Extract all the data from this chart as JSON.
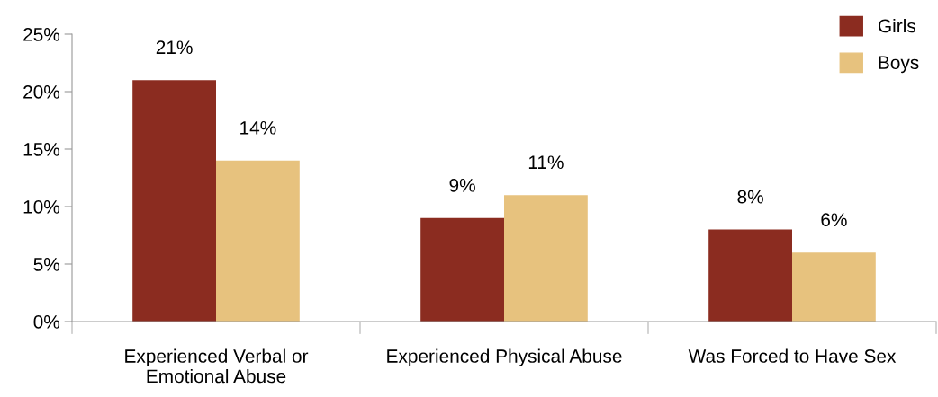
{
  "chart_data": {
    "type": "bar",
    "categories": [
      "Experienced Verbal or\nEmotional Abuse",
      "Experienced Physical Abuse",
      "Was Forced to Have Sex"
    ],
    "series": [
      {
        "name": "Girls",
        "color": "#8b2c20",
        "values": [
          21,
          9,
          8
        ],
        "value_labels": [
          "21%",
          "9%",
          "8%"
        ]
      },
      {
        "name": "Boys",
        "color": "#e7c27e",
        "values": [
          14,
          11,
          6
        ],
        "value_labels": [
          "14%",
          "11%",
          "6%"
        ]
      }
    ],
    "ylim": [
      0,
      25
    ],
    "yticks": [
      {
        "value": 0,
        "label": "0%"
      },
      {
        "value": 5,
        "label": "5%"
      },
      {
        "value": 10,
        "label": "10%"
      },
      {
        "value": 15,
        "label": "15%"
      },
      {
        "value": 20,
        "label": "20%"
      },
      {
        "value": 25,
        "label": "25%"
      }
    ],
    "grid": false,
    "legend": "top right"
  }
}
